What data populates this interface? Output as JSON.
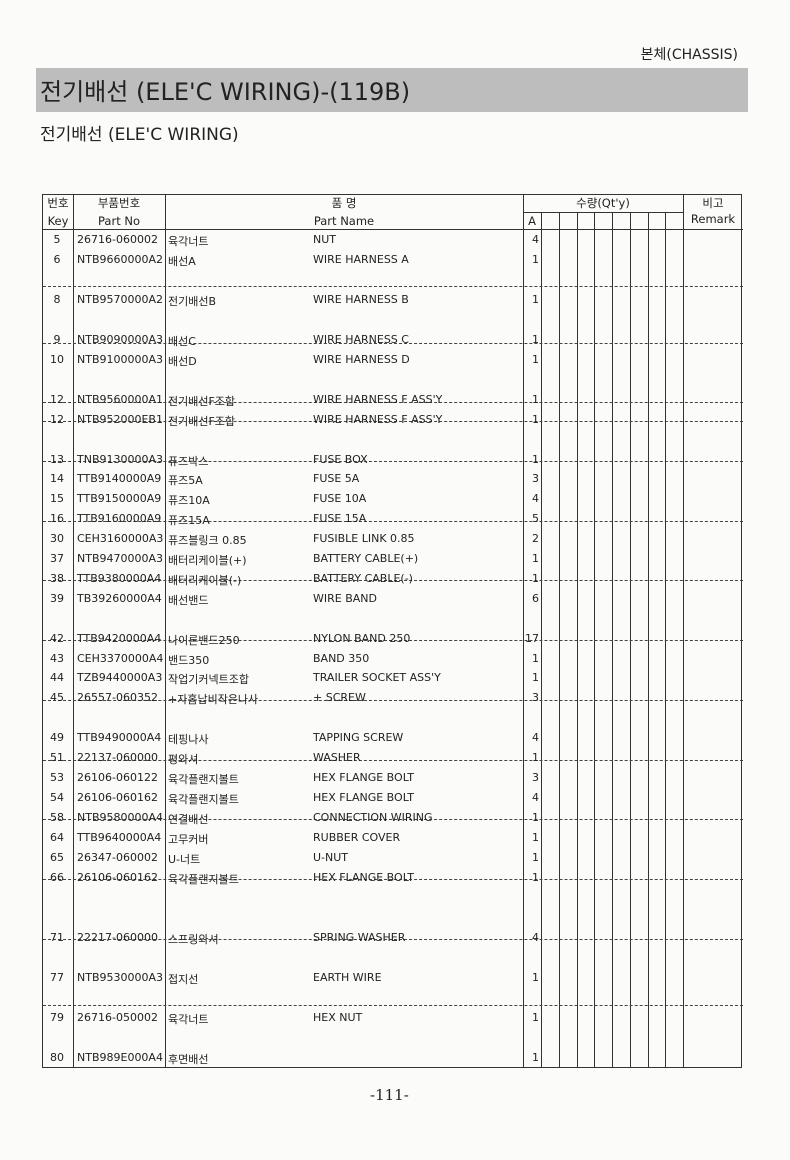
{
  "header": {
    "section": "본체(CHASSIS)",
    "title": "전기배선 (ELE'C WIRING)-(119B)",
    "subtitle": "전기배선 (ELE'C WIRING)"
  },
  "table": {
    "columns": {
      "key_ko": "번호",
      "key_en": "Key",
      "part_no_ko": "부품번호",
      "part_no_en": "Part No",
      "name_ko": "품 명",
      "name_en": "Part Name",
      "qty_ko": "수량(Qt'y)",
      "qty_a": "A",
      "remark_ko": "비고",
      "remark_en": "Remark"
    },
    "rows": [
      {
        "key": "5",
        "part_no": "26716-060002",
        "name_ko": "육각너트",
        "name_en": "NUT",
        "qty": "4"
      },
      {
        "key": "6",
        "part_no": "NTB9660000A2",
        "name_ko": "배선A",
        "name_en": "WIRE HARNESS A",
        "qty": "1"
      },
      {
        "key": "8",
        "part_no": "NTB9570000A2",
        "name_ko": "전기배선B",
        "name_en": "WIRE HARNESS B",
        "qty": "1"
      },
      {
        "key": "9",
        "part_no": "NTB9090000A3",
        "name_ko": "배선C",
        "name_en": "WIRE HARNESS C",
        "qty": "1"
      },
      {
        "key": "10",
        "part_no": "NTB9100000A3",
        "name_ko": "배선D",
        "name_en": "WIRE HARNESS D",
        "qty": "1"
      },
      {
        "key": "12",
        "part_no": "NTB9560000A1",
        "name_ko": "전기배선F조합",
        "name_en": "WIRE HARNESS F ASS'Y",
        "qty": "1"
      },
      {
        "key": "12",
        "part_no": "NTB952000EB1",
        "name_ko": "전기배선F조합",
        "name_en": "WIRE HARNESS F ASS'Y",
        "qty": "1"
      },
      {
        "key": "13",
        "part_no": "TNB9130000A3",
        "name_ko": "퓨즈박스",
        "name_en": "FUSE BOX",
        "qty": "1"
      },
      {
        "key": "14",
        "part_no": "TTB9140000A9",
        "name_ko": "퓨즈5A",
        "name_en": "FUSE 5A",
        "qty": "3"
      },
      {
        "key": "15",
        "part_no": "TTB9150000A9",
        "name_ko": "퓨즈10A",
        "name_en": "FUSE 10A",
        "qty": "4"
      },
      {
        "key": "16",
        "part_no": "TTB9160000A9",
        "name_ko": "퓨즈15A",
        "name_en": "FUSE 15A",
        "qty": "5"
      },
      {
        "key": "30",
        "part_no": "CEH3160000A3",
        "name_ko": "퓨즈블링크 0.85",
        "name_en": "FUSIBLE LINK 0.85",
        "qty": "2"
      },
      {
        "key": "37",
        "part_no": "NTB9470000A3",
        "name_ko": "배터리케이블(+)",
        "name_en": "BATTERY CABLE(+)",
        "qty": "1"
      },
      {
        "key": "38",
        "part_no": "TTB9380000A4",
        "name_ko": "배터리케이블(-)",
        "name_en": "BATTERY CABLE(-)",
        "qty": "1"
      },
      {
        "key": "39",
        "part_no": "TB39260000A4",
        "name_ko": "배선밴드",
        "name_en": "WIRE BAND",
        "qty": "6"
      },
      {
        "key": "42",
        "part_no": "TTB9420000A4",
        "name_ko": "나이론밴드250",
        "name_en": "NYLON BAND 250",
        "qty": "17"
      },
      {
        "key": "43",
        "part_no": "CEH3370000A4",
        "name_ko": "밴드350",
        "name_en": "BAND 350",
        "qty": "1"
      },
      {
        "key": "44",
        "part_no": "TZB9440000A3",
        "name_ko": "작업기커넥트조합",
        "name_en": "TRAILER SOCKET ASS'Y",
        "qty": "1"
      },
      {
        "key": "45",
        "part_no": "26557-060352",
        "name_ko": "+자홈납비작은나사",
        "name_en": "+ SCREW",
        "qty": "3"
      },
      {
        "key": "49",
        "part_no": "TTB9490000A4",
        "name_ko": "테핑나사",
        "name_en": "TAPPING SCREW",
        "qty": "4"
      },
      {
        "key": "51",
        "part_no": "22137-060000",
        "name_ko": "평와셔",
        "name_en": "WASHER",
        "qty": "1"
      },
      {
        "key": "53",
        "part_no": "26106-060122",
        "name_ko": "육각플랜지볼트",
        "name_en": "HEX FLANGE BOLT",
        "qty": "3"
      },
      {
        "key": "54",
        "part_no": "26106-060162",
        "name_ko": "육각플랜지볼트",
        "name_en": "HEX FLANGE BOLT",
        "qty": "4"
      },
      {
        "key": "58",
        "part_no": "NTB9580000A4",
        "name_ko": "연결배선",
        "name_en": "CONNECTION WIRING",
        "qty": "1"
      },
      {
        "key": "64",
        "part_no": "TTB9640000A4",
        "name_ko": "고무커버",
        "name_en": "RUBBER COVER",
        "qty": "1"
      },
      {
        "key": "65",
        "part_no": "26347-060002",
        "name_ko": "U-너트",
        "name_en": "U-NUT",
        "qty": "1"
      },
      {
        "key": "66",
        "part_no": "26106-060162",
        "name_ko": "육각플랜지볼트",
        "name_en": "HEX FLANGE BOLT",
        "qty": "1"
      },
      {
        "key": "71",
        "part_no": "22217-060000",
        "name_ko": "스프링와셔",
        "name_en": "SPRING WASHER",
        "qty": "4"
      },
      {
        "key": "77",
        "part_no": "NTB9530000A3",
        "name_ko": "접지선",
        "name_en": "EARTH WIRE",
        "qty": "1"
      },
      {
        "key": "79",
        "part_no": "26716-050002",
        "name_ko": "육각너트",
        "name_en": "HEX NUT",
        "qty": "1"
      },
      {
        "key": "80",
        "part_no": "NTB989E000A4",
        "name_ko": "후면배선",
        "name_en": "",
        "qty": "1"
      }
    ]
  },
  "footer": {
    "page_number": "-111-"
  }
}
